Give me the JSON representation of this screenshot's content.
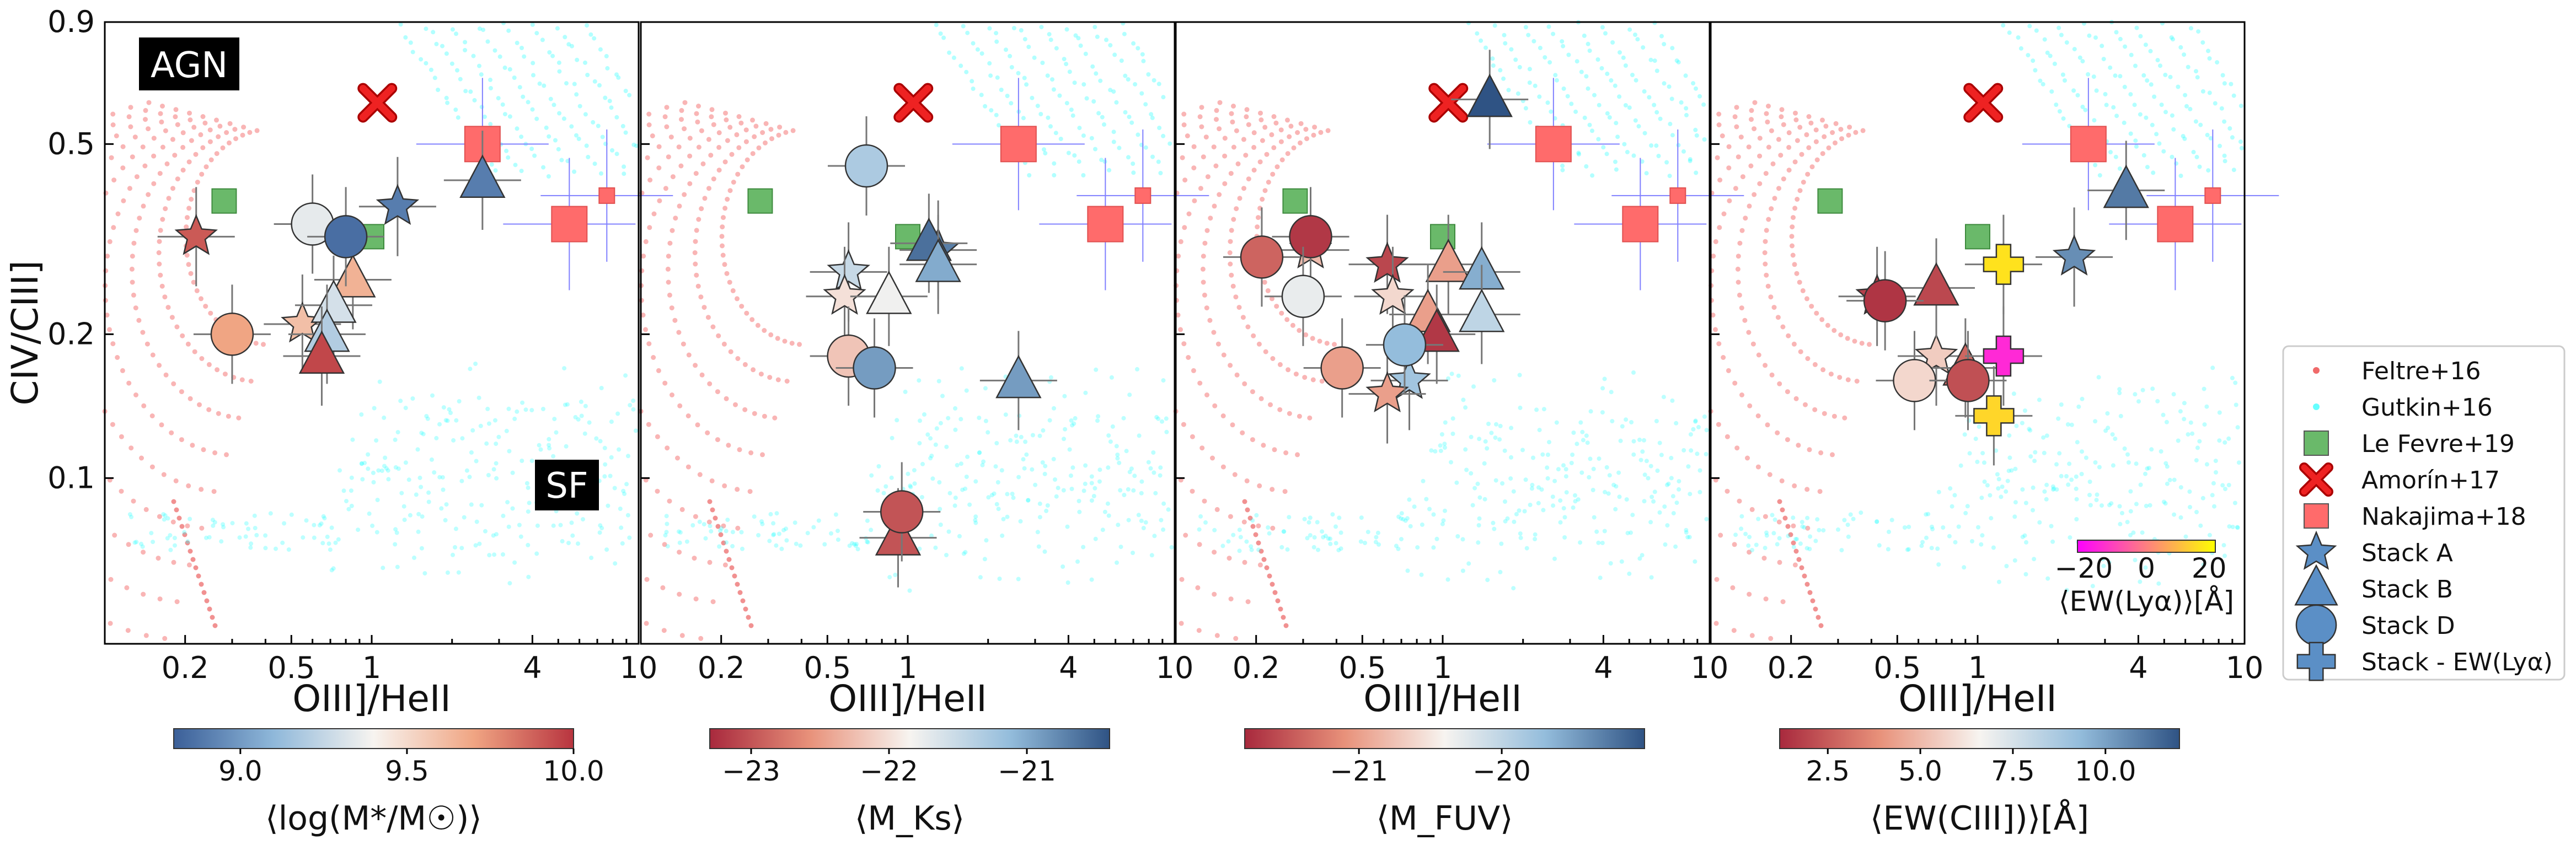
{
  "chart_data": {
    "type": "scatter",
    "shared": {
      "xlabel": "OIII]/HeII",
      "ylabel": "CIV/CIII]",
      "xscale": "log",
      "yscale": "log",
      "xlim": [
        0.1,
        10
      ],
      "ylim": [
        0.045,
        0.9
      ],
      "xticks": [
        {
          "v": 0.2,
          "t": "0.2"
        },
        {
          "v": 0.5,
          "t": "0.5"
        },
        {
          "v": 1,
          "t": "1"
        },
        {
          "v": 4,
          "t": "4"
        },
        {
          "v": 10,
          "t": "10"
        }
      ],
      "yticks": [
        {
          "v": 0.9,
          "t": "0.9"
        },
        {
          "v": 0.5,
          "t": "0.5"
        },
        {
          "v": 0.2,
          "t": "0.2"
        },
        {
          "v": 0.1,
          "t": "0.1"
        }
      ],
      "region_labels": [
        "AGN",
        "SF"
      ]
    },
    "references": [
      {
        "name": "Le Fevre+19",
        "marker": "square",
        "color": "#6ab96a",
        "points": [
          [
            0.28,
            0.38
          ],
          [
            1.0,
            0.32
          ]
        ]
      },
      {
        "name": "Amorín+17",
        "marker": "x",
        "color": "#ee2222",
        "points": [
          [
            1.05,
            0.61
          ]
        ]
      },
      {
        "name": "Nakajima+18",
        "marker": "square",
        "color": "#ff6b6b",
        "points": [
          [
            2.6,
            0.5
          ],
          [
            5.5,
            0.34
          ],
          [
            7.6,
            0.39
          ]
        ]
      }
    ],
    "panels": [
      {
        "id": "mass",
        "colorbar": {
          "label": "⟨log(M*/M☉)⟩",
          "range": [
            8.8,
            10.0
          ],
          "scheme": "BuRd",
          "ticks": [
            {
              "v": 9.0,
              "t": "9.0"
            },
            {
              "v": 9.5,
              "t": "9.5"
            },
            {
              "v": 10.0,
              "t": "10.0"
            }
          ]
        },
        "stacks": [
          {
            "set": "A",
            "x": 0.22,
            "y": 0.32,
            "c": 9.9
          },
          {
            "set": "A",
            "x": 0.55,
            "y": 0.21,
            "c": 9.6
          },
          {
            "set": "A",
            "x": 1.25,
            "y": 0.37,
            "c": 8.9
          },
          {
            "set": "B",
            "x": 2.6,
            "y": 0.42,
            "c": 8.9
          },
          {
            "set": "B",
            "x": 0.85,
            "y": 0.26,
            "c": 9.65
          },
          {
            "set": "B",
            "x": 0.72,
            "y": 0.23,
            "c": 9.3
          },
          {
            "set": "B",
            "x": 0.68,
            "y": 0.2,
            "c": 9.2
          },
          {
            "set": "B",
            "x": 0.65,
            "y": 0.18,
            "c": 9.95
          },
          {
            "set": "D",
            "x": 0.6,
            "y": 0.34,
            "c": 9.35
          },
          {
            "set": "D",
            "x": 0.8,
            "y": 0.32,
            "c": 8.85
          },
          {
            "set": "D",
            "x": 0.3,
            "y": 0.2,
            "c": 9.7
          }
        ]
      },
      {
        "id": "mks",
        "colorbar": {
          "label": "⟨M_Ks⟩",
          "range": [
            -23.3,
            -20.4
          ],
          "scheme": "RdBu",
          "ticks": [
            {
              "v": -23,
              "t": "−23"
            },
            {
              "v": -22,
              "t": "−22"
            },
            {
              "v": -21,
              "t": "−21"
            }
          ]
        },
        "stacks": [
          {
            "set": "A",
            "x": 0.6,
            "y": 0.27,
            "c": -21.5
          },
          {
            "set": "A",
            "x": 0.58,
            "y": 0.24,
            "c": -22.0
          },
          {
            "set": "A",
            "x": 1.3,
            "y": 0.3,
            "c": -20.7
          },
          {
            "set": "B",
            "x": 1.2,
            "y": 0.31,
            "c": -20.6
          },
          {
            "set": "B",
            "x": 1.3,
            "y": 0.28,
            "c": -21.0
          },
          {
            "set": "B",
            "x": 0.85,
            "y": 0.24,
            "c": -21.8
          },
          {
            "set": "B",
            "x": 2.6,
            "y": 0.16,
            "c": -20.9
          },
          {
            "set": "B",
            "x": 0.92,
            "y": 0.075,
            "c": -23.0
          },
          {
            "set": "D",
            "x": 0.7,
            "y": 0.45,
            "c": -21.3
          },
          {
            "set": "D",
            "x": 0.6,
            "y": 0.18,
            "c": -22.2
          },
          {
            "set": "D",
            "x": 0.75,
            "y": 0.17,
            "c": -20.9
          },
          {
            "set": "D",
            "x": 0.95,
            "y": 0.085,
            "c": -23.0
          }
        ]
      },
      {
        "id": "mfuv",
        "colorbar": {
          "label": "⟨M_FUV⟩",
          "range": [
            -21.8,
            -19.0
          ],
          "scheme": "RdBu",
          "ticks": [
            {
              "v": -21,
              "t": "−21"
            },
            {
              "v": -20,
              "t": "−20"
            }
          ]
        },
        "stacks": [
          {
            "set": "A",
            "x": 0.62,
            "y": 0.28,
            "c": -21.6
          },
          {
            "set": "A",
            "x": 0.65,
            "y": 0.24,
            "c": -20.6
          },
          {
            "set": "A",
            "x": 0.75,
            "y": 0.16,
            "c": -19.8
          },
          {
            "set": "A",
            "x": 0.62,
            "y": 0.15,
            "c": -21.0
          },
          {
            "set": "A",
            "x": 0.32,
            "y": 0.3,
            "c": -20.8
          },
          {
            "set": "B",
            "x": 1.5,
            "y": 0.62,
            "c": -19.0
          },
          {
            "set": "B",
            "x": 1.05,
            "y": 0.28,
            "c": -21.0
          },
          {
            "set": "B",
            "x": 1.4,
            "y": 0.27,
            "c": -19.6
          },
          {
            "set": "B",
            "x": 1.4,
            "y": 0.22,
            "c": -20.0
          },
          {
            "set": "B",
            "x": 0.88,
            "y": 0.22,
            "c": -21.0
          },
          {
            "set": "B",
            "x": 0.95,
            "y": 0.2,
            "c": -21.7
          },
          {
            "set": "D",
            "x": 0.21,
            "y": 0.29,
            "c": -21.4
          },
          {
            "set": "D",
            "x": 0.32,
            "y": 0.32,
            "c": -21.7
          },
          {
            "set": "D",
            "x": 0.3,
            "y": 0.24,
            "c": -20.3
          },
          {
            "set": "D",
            "x": 0.42,
            "y": 0.17,
            "c": -21.0
          },
          {
            "set": "D",
            "x": 0.72,
            "y": 0.19,
            "c": -19.7
          }
        ]
      },
      {
        "id": "ewciii",
        "colorbar": {
          "label": "⟨EW(CIII])⟩[Å]",
          "range": [
            1.2,
            12.0
          ],
          "scheme": "RdBu",
          "ticks": [
            {
              "v": 2.5,
              "t": "2.5"
            },
            {
              "v": 5.0,
              "t": "5.0"
            },
            {
              "v": 7.5,
              "t": "7.5"
            },
            {
              "v": 10.0,
              "t": "10.0"
            }
          ]
        },
        "inset_colorbar": {
          "label": "⟨EW(Lyα)⟩[Å]",
          "range": [
            -22,
            22
          ],
          "scheme": "spring",
          "ticks": [
            {
              "v": -20,
              "t": "−20"
            },
            {
              "v": 0,
              "t": "0"
            },
            {
              "v": 20,
              "t": "20"
            }
          ]
        },
        "stacks": [
          {
            "set": "A",
            "x": 2.3,
            "y": 0.29,
            "c": 10.5
          },
          {
            "set": "A",
            "x": 0.42,
            "y": 0.24,
            "c": 1.8
          },
          {
            "set": "A",
            "x": 0.7,
            "y": 0.18,
            "c": 5.5
          },
          {
            "set": "B",
            "x": 3.6,
            "y": 0.4,
            "c": 11.0
          },
          {
            "set": "B",
            "x": 0.7,
            "y": 0.25,
            "c": 2.0
          },
          {
            "set": "B",
            "x": 0.9,
            "y": 0.17,
            "c": 2.8
          },
          {
            "set": "D",
            "x": 0.45,
            "y": 0.235,
            "c": 1.5
          },
          {
            "set": "D",
            "x": 0.58,
            "y": 0.16,
            "c": 5.8
          },
          {
            "set": "D",
            "x": 0.92,
            "y": 0.16,
            "c": 2.2
          },
          {
            "set": "LyA",
            "x": 1.25,
            "y": 0.28,
            "c": 17
          },
          {
            "set": "LyA",
            "x": 1.25,
            "y": 0.18,
            "c": -15
          },
          {
            "set": "LyA",
            "x": 1.15,
            "y": 0.135,
            "c": 15
          }
        ]
      }
    ],
    "legend": [
      {
        "label": "Feltre+16",
        "marker": "dot",
        "color": "#f06a6a"
      },
      {
        "label": "Gutkin+16",
        "marker": "dot",
        "color": "#66ffff"
      },
      {
        "label": "Le Fevre+19",
        "marker": "square",
        "color": "#6ab96a"
      },
      {
        "label": "Amorín+17",
        "marker": "x",
        "color": "#ee2222"
      },
      {
        "label": "Nakajima+18",
        "marker": "square",
        "color": "#ff6b6b"
      },
      {
        "label": "Stack A",
        "marker": "star",
        "color": "#5b8fc6"
      },
      {
        "label": "Stack B",
        "marker": "triangle",
        "color": "#5b8fc6"
      },
      {
        "label": "Stack D",
        "marker": "circle",
        "color": "#5b8fc6"
      },
      {
        "label": "Stack - EW(Lyα)",
        "marker": "plus",
        "color": "#5b8fc6"
      }
    ]
  }
}
